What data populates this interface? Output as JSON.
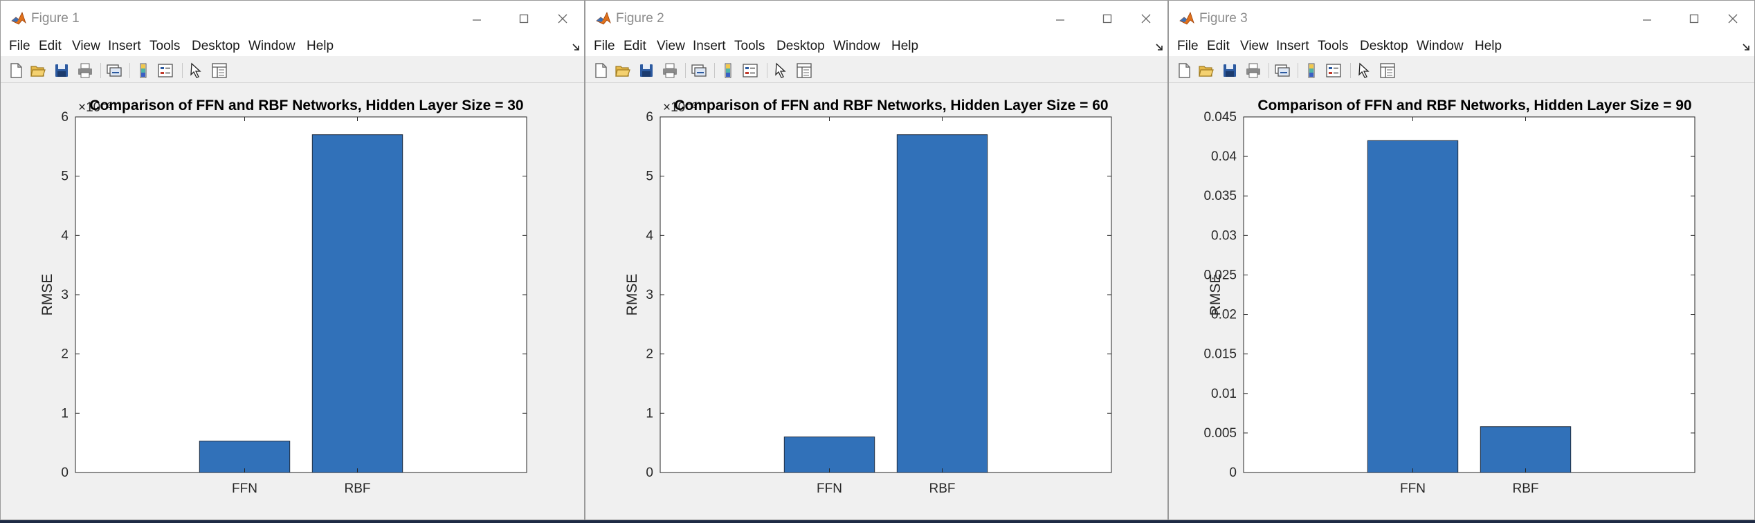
{
  "menus": [
    "File",
    "Edit",
    "View",
    "Insert",
    "Tools",
    "Desktop",
    "Window",
    "Help"
  ],
  "toolbar_icons": [
    "new-figure-icon",
    "open-file-icon",
    "save-icon",
    "print-icon",
    "link-plot-icon",
    "insert-colorbar-icon",
    "insert-legend-icon",
    "edit-plot-icon",
    "property-inspector-icon"
  ],
  "colors": {
    "bar": "#3171b9",
    "bar_edge": "#1f2c3f",
    "axes_bg": "#ffffff",
    "figure_bg": "#f0f0f0"
  },
  "figures": [
    {
      "title": "Figure 1",
      "chart_data": {
        "type": "bar",
        "title": "Comparison of FFN and RBF Networks, Hidden Layer Size = 30",
        "categories": [
          "FFN",
          "RBF"
        ],
        "values": [
          0.00053,
          0.0057
        ],
        "ylabel": "RMSE",
        "xlabel": "",
        "ylim": [
          0,
          0.006
        ],
        "yticks": [
          "0",
          "1",
          "2",
          "3",
          "4",
          "5",
          "6"
        ],
        "exponent_label": "×10⁻³",
        "grid": false
      }
    },
    {
      "title": "Figure 2",
      "chart_data": {
        "type": "bar",
        "title": "Comparison of FFN and RBF Networks, Hidden Layer Size = 60",
        "categories": [
          "FFN",
          "RBF"
        ],
        "values": [
          0.0006,
          0.0057
        ],
        "ylabel": "RMSE",
        "xlabel": "",
        "ylim": [
          0,
          0.006
        ],
        "yticks": [
          "0",
          "1",
          "2",
          "3",
          "4",
          "5",
          "6"
        ],
        "exponent_label": "×10⁻³",
        "grid": false
      }
    },
    {
      "title": "Figure 3",
      "chart_data": {
        "type": "bar",
        "title": "Comparison of FFN and RBF Networks, Hidden Layer Size = 90",
        "categories": [
          "FFN",
          "RBF"
        ],
        "values": [
          0.042,
          0.0058
        ],
        "ylabel": "RMSE",
        "xlabel": "",
        "ylim": [
          0,
          0.045
        ],
        "yticks": [
          "0",
          "0.005",
          "0.01",
          "0.015",
          "0.02",
          "0.025",
          "0.03",
          "0.035",
          "0.04",
          "0.045"
        ],
        "exponent_label": "",
        "grid": false
      }
    }
  ]
}
